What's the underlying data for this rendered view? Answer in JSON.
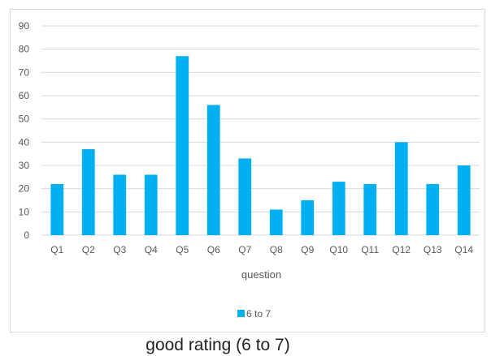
{
  "chart_data": {
    "type": "bar",
    "categories": [
      "Q1",
      "Q2",
      "Q3",
      "Q4",
      "Q5",
      "Q6",
      "Q7",
      "Q8",
      "Q9",
      "Q10",
      "Q11",
      "Q12",
      "Q13",
      "Q14"
    ],
    "series": [
      {
        "name": "6 to 7",
        "values": [
          22,
          37,
          26,
          26,
          77,
          56,
          33,
          11,
          15,
          23,
          22,
          40,
          22,
          30
        ],
        "color": "#00b0f0"
      }
    ],
    "xlabel": "question",
    "ylabel": "",
    "ylim": [
      0,
      90
    ],
    "yticks": [
      0,
      10,
      20,
      30,
      40,
      50,
      60,
      70,
      80,
      90
    ],
    "grid": true,
    "legend_position": "bottom"
  },
  "caption": "good rating (6 to 7)",
  "colors": {
    "bar": "#00b0f0",
    "grid": "#d9d9d9",
    "text": "#595959"
  }
}
